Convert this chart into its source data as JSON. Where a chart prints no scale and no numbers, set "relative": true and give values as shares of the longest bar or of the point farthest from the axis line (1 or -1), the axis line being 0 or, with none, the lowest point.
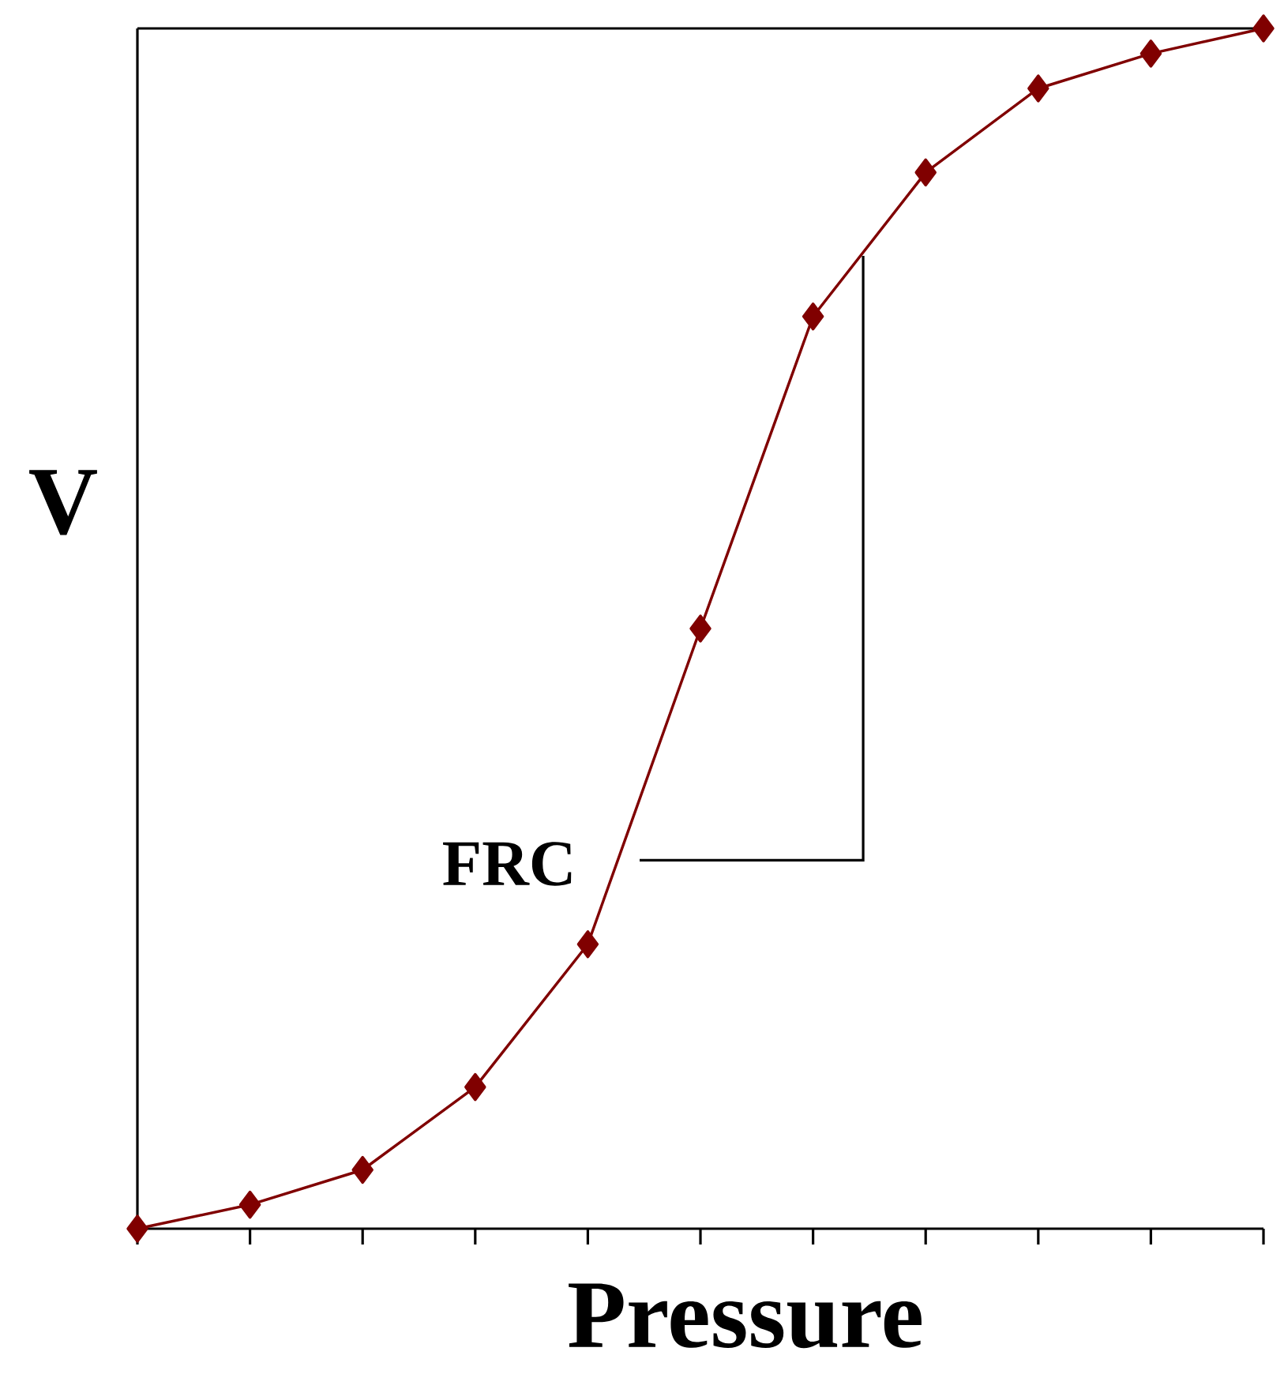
{
  "chart_data": {
    "type": "line",
    "xlabel": "Pressure",
    "ylabel": "V",
    "relative": true,
    "marker": "diamond",
    "line_style": "solid",
    "categories": [
      null,
      null,
      null,
      null,
      null,
      null,
      null,
      null,
      null,
      null,
      null
    ],
    "series": [
      {
        "color": "#800000",
        "values": [
          0,
          0.02,
          0.049,
          0.118,
          0.237,
          0.5,
          0.76,
          0.88,
          0.95,
          0.979,
          1
        ]
      }
    ],
    "annotations": [
      "FRC"
    ]
  }
}
